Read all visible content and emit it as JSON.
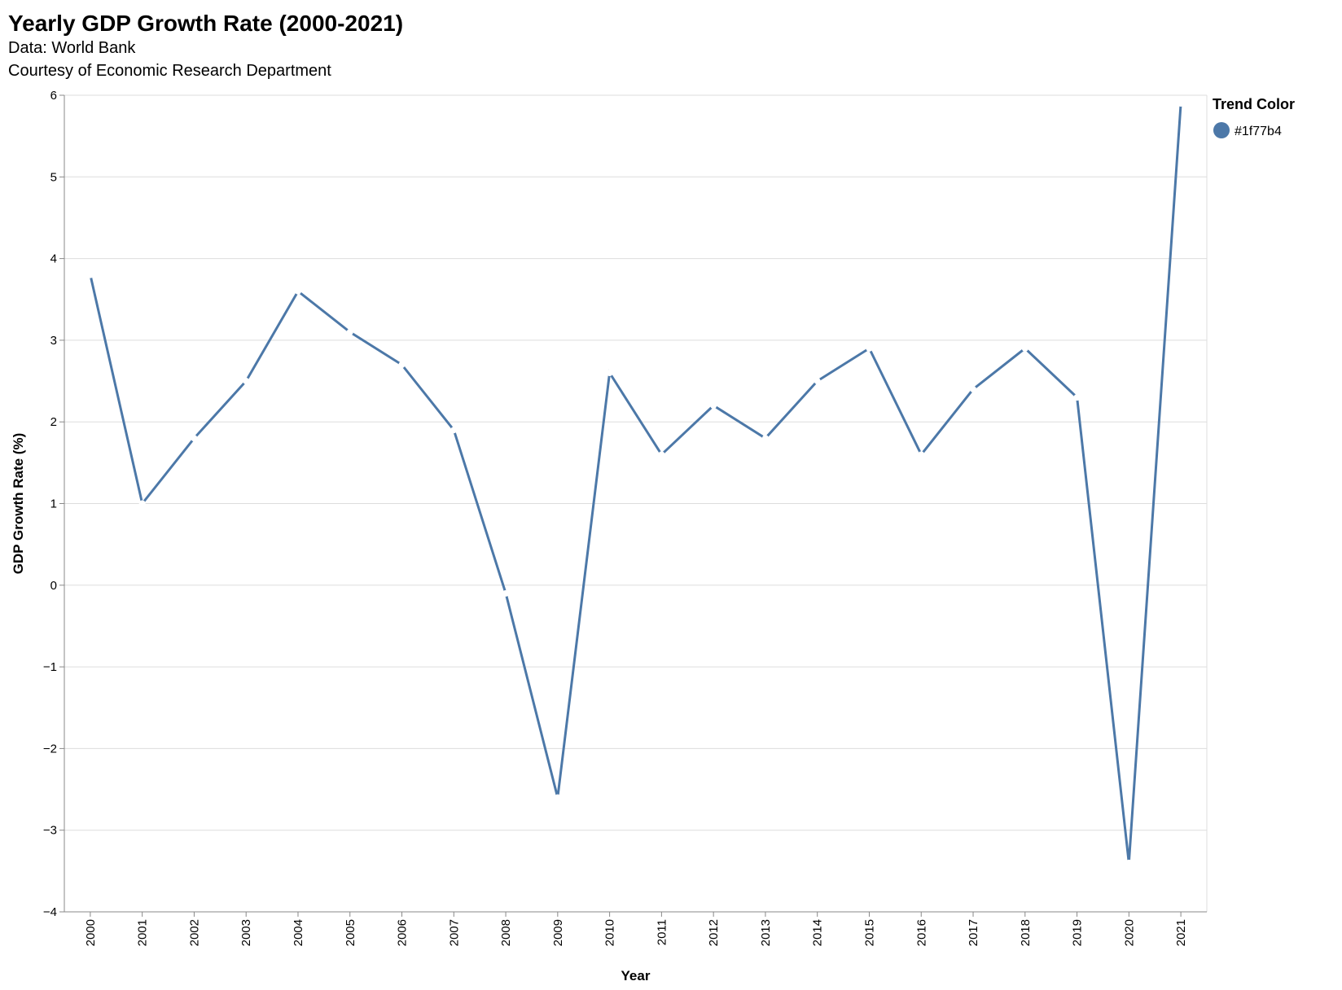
{
  "chart_data": {
    "type": "line",
    "title": "Yearly GDP Growth Rate (2000-2021)",
    "subtitle": [
      "Data: World Bank",
      "Courtesy of Economic Research Department"
    ],
    "xlabel": "Year",
    "ylabel": "GDP Growth Rate (%)",
    "ylim": [
      -4,
      6
    ],
    "yticks": [
      -4,
      -3,
      -2,
      -1,
      0,
      1,
      2,
      3,
      4,
      5,
      6
    ],
    "ytick_labels": [
      "−4",
      "−3",
      "−2",
      "−1",
      "0",
      "1",
      "2",
      "3",
      "4",
      "5",
      "6"
    ],
    "grid": true,
    "x": [
      "2000",
      "2001",
      "2002",
      "2003",
      "2004",
      "2005",
      "2006",
      "2007",
      "2008",
      "2009",
      "2010",
      "2011",
      "2012",
      "2013",
      "2014",
      "2015",
      "2016",
      "2017",
      "2018",
      "2019",
      "2020",
      "2021"
    ],
    "series": [
      {
        "values": [
          3.8,
          1.0,
          1.8,
          2.5,
          3.6,
          3.1,
          2.7,
          1.9,
          -0.1,
          -2.6,
          2.6,
          1.6,
          2.2,
          1.8,
          2.5,
          2.9,
          1.6,
          2.4,
          2.9,
          2.3,
          -3.4,
          5.9
        ],
        "color": "#4c78a8"
      }
    ],
    "legend": {
      "title": "Trend Color",
      "position": "top-right",
      "items": [
        {
          "label": "#1f77b4",
          "color": "#4c78a8"
        }
      ]
    }
  }
}
